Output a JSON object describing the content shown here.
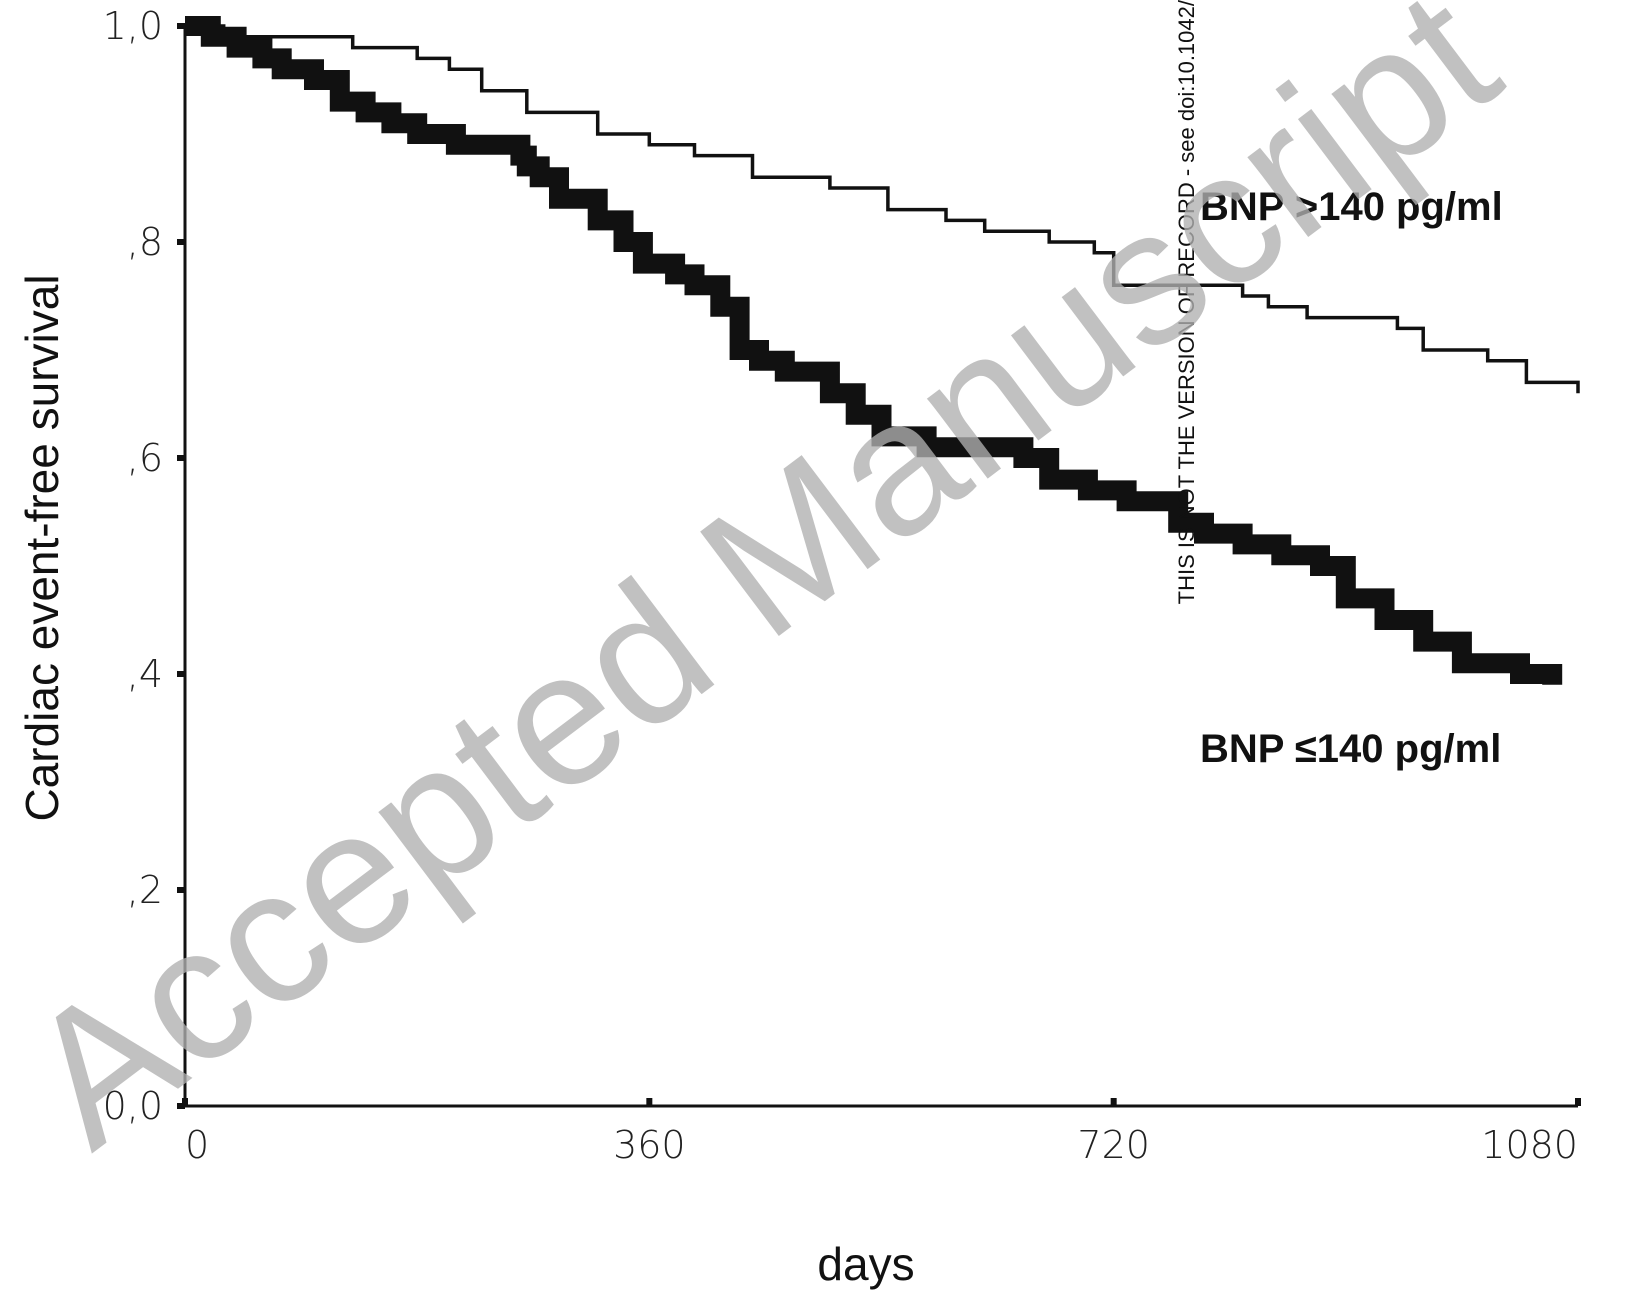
{
  "chart_data": {
    "type": "line",
    "step": true,
    "xlabel": "days",
    "ylabel": "Cardiac event-free survival",
    "xlim": [
      0,
      1080
    ],
    "ylim": [
      0,
      1
    ],
    "x_ticks": [
      {
        "value": 0,
        "label": "0"
      },
      {
        "value": 360,
        "label": "360"
      },
      {
        "value": 720,
        "label": "720"
      },
      {
        "value": 1080,
        "label": "1080"
      }
    ],
    "y_ticks": [
      {
        "value": 0,
        "label": "0,0"
      },
      {
        "value": 0.2,
        "label": ",2"
      },
      {
        "value": 0.4,
        "label": ",4"
      },
      {
        "value": 0.6,
        "label": ",6"
      },
      {
        "value": 0.8,
        "label": ",8"
      },
      {
        "value": 1.0,
        "label": "1,0"
      }
    ],
    "series": [
      {
        "name": "BNP >140 pg/ml",
        "style": "thin",
        "color": "#111111",
        "points": [
          [
            0,
            1.0
          ],
          [
            30,
            0.99
          ],
          [
            80,
            0.99
          ],
          [
            130,
            0.98
          ],
          [
            180,
            0.97
          ],
          [
            205,
            0.96
          ],
          [
            230,
            0.94
          ],
          [
            265,
            0.92
          ],
          [
            320,
            0.9
          ],
          [
            360,
            0.89
          ],
          [
            395,
            0.88
          ],
          [
            440,
            0.86
          ],
          [
            500,
            0.85
          ],
          [
            545,
            0.83
          ],
          [
            590,
            0.82
          ],
          [
            620,
            0.81
          ],
          [
            670,
            0.8
          ],
          [
            705,
            0.79
          ],
          [
            720,
            0.76
          ],
          [
            820,
            0.75
          ],
          [
            840,
            0.74
          ],
          [
            870,
            0.73
          ],
          [
            940,
            0.72
          ],
          [
            960,
            0.7
          ],
          [
            1010,
            0.69
          ],
          [
            1040,
            0.67
          ],
          [
            1075,
            0.67
          ],
          [
            1080,
            0.66
          ]
        ]
      },
      {
        "name": "BNP <140 pg/ml",
        "style": "thick",
        "color": "#111111",
        "points": [
          [
            0,
            1.0
          ],
          [
            20,
            0.99
          ],
          [
            40,
            0.98
          ],
          [
            60,
            0.97
          ],
          [
            75,
            0.96
          ],
          [
            100,
            0.95
          ],
          [
            120,
            0.93
          ],
          [
            140,
            0.92
          ],
          [
            160,
            0.91
          ],
          [
            180,
            0.9
          ],
          [
            210,
            0.89
          ],
          [
            260,
            0.88
          ],
          [
            265,
            0.87
          ],
          [
            275,
            0.86
          ],
          [
            290,
            0.84
          ],
          [
            320,
            0.82
          ],
          [
            340,
            0.8
          ],
          [
            355,
            0.78
          ],
          [
            380,
            0.77
          ],
          [
            395,
            0.76
          ],
          [
            415,
            0.74
          ],
          [
            430,
            0.7
          ],
          [
            445,
            0.69
          ],
          [
            465,
            0.68
          ],
          [
            500,
            0.66
          ],
          [
            520,
            0.64
          ],
          [
            540,
            0.62
          ],
          [
            575,
            0.61
          ],
          [
            650,
            0.6
          ],
          [
            670,
            0.58
          ],
          [
            700,
            0.57
          ],
          [
            730,
            0.56
          ],
          [
            770,
            0.54
          ],
          [
            790,
            0.53
          ],
          [
            820,
            0.52
          ],
          [
            850,
            0.51
          ],
          [
            880,
            0.5
          ],
          [
            900,
            0.47
          ],
          [
            930,
            0.45
          ],
          [
            960,
            0.43
          ],
          [
            990,
            0.41
          ],
          [
            1015,
            0.41
          ],
          [
            1035,
            0.4
          ],
          [
            1060,
            0.39
          ]
        ]
      }
    ],
    "annotations": [
      {
        "text": "BNP >140 pg/ml"
      },
      {
        "text": "BNP <140 pg/ml"
      }
    ],
    "grid": false,
    "legend": "none"
  },
  "side_note": "THIS IS NOT THE VERSION OF RECORD - see doi:10.1042/",
  "watermark": "Accepted Manuscript"
}
